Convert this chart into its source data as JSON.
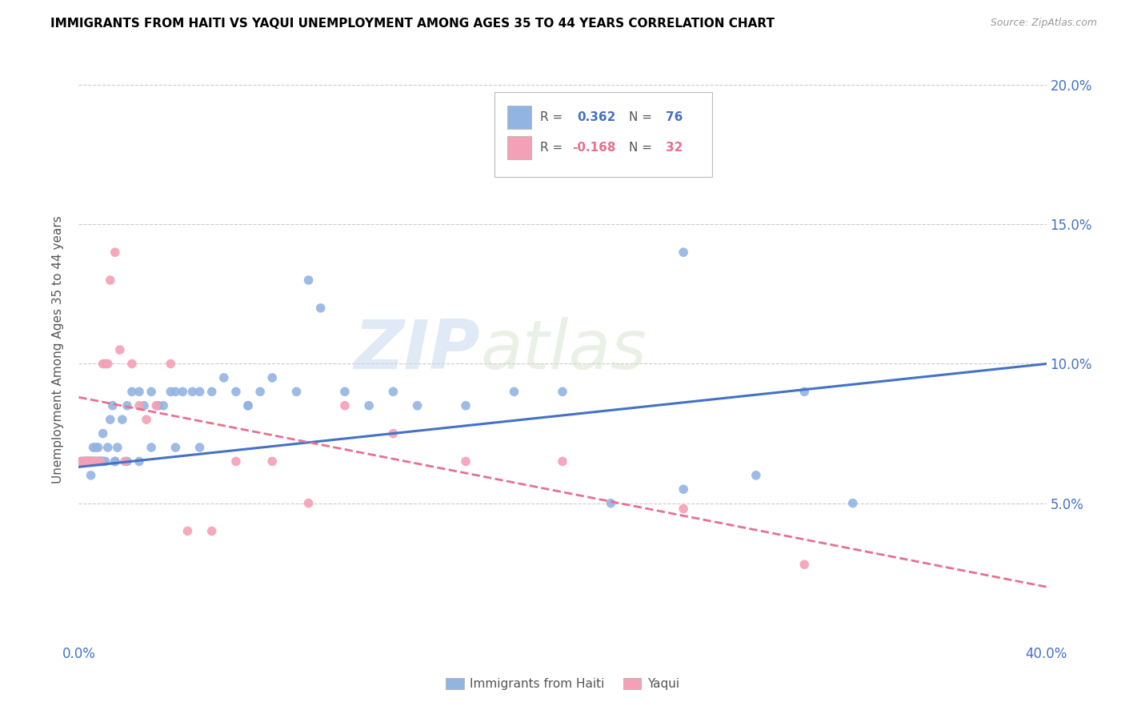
{
  "title": "IMMIGRANTS FROM HAITI VS YAQUI UNEMPLOYMENT AMONG AGES 35 TO 44 YEARS CORRELATION CHART",
  "source": "Source: ZipAtlas.com",
  "ylabel": "Unemployment Among Ages 35 to 44 years",
  "x_min": 0.0,
  "x_max": 0.4,
  "y_min": 0.0,
  "y_max": 0.21,
  "x_ticks": [
    0.0,
    0.05,
    0.1,
    0.15,
    0.2,
    0.25,
    0.3,
    0.35,
    0.4
  ],
  "y_ticks": [
    0.0,
    0.05,
    0.1,
    0.15,
    0.2
  ],
  "haiti_R": 0.362,
  "haiti_N": 76,
  "yaqui_R": -0.168,
  "yaqui_N": 32,
  "haiti_color": "#92b4e3",
  "yaqui_color": "#f4a0b5",
  "haiti_line_color": "#4472c4",
  "yaqui_line_color": "#e87090",
  "haiti_line_y0": 0.063,
  "haiti_line_y1": 0.1,
  "yaqui_line_y0": 0.088,
  "yaqui_line_y1": 0.02,
  "watermark_zip": "ZIP",
  "watermark_atlas": "atlas",
  "haiti_x": [
    0.001,
    0.002,
    0.002,
    0.003,
    0.003,
    0.004,
    0.004,
    0.005,
    0.005,
    0.005,
    0.006,
    0.006,
    0.007,
    0.007,
    0.008,
    0.008,
    0.009,
    0.009,
    0.01,
    0.01,
    0.011,
    0.012,
    0.013,
    0.014,
    0.015,
    0.016,
    0.018,
    0.02,
    0.022,
    0.025,
    0.027,
    0.03,
    0.033,
    0.035,
    0.038,
    0.04,
    0.043,
    0.047,
    0.05,
    0.055,
    0.06,
    0.065,
    0.07,
    0.075,
    0.08,
    0.09,
    0.095,
    0.1,
    0.11,
    0.12,
    0.13,
    0.14,
    0.16,
    0.18,
    0.2,
    0.22,
    0.25,
    0.28,
    0.3,
    0.32,
    0.003,
    0.004,
    0.005,
    0.006,
    0.007,
    0.008,
    0.009,
    0.01,
    0.015,
    0.02,
    0.025,
    0.03,
    0.04,
    0.05,
    0.07,
    0.25
  ],
  "haiti_y": [
    0.065,
    0.065,
    0.065,
    0.065,
    0.065,
    0.065,
    0.065,
    0.065,
    0.065,
    0.065,
    0.065,
    0.07,
    0.065,
    0.07,
    0.065,
    0.07,
    0.065,
    0.065,
    0.065,
    0.075,
    0.065,
    0.07,
    0.08,
    0.085,
    0.065,
    0.07,
    0.08,
    0.085,
    0.09,
    0.09,
    0.085,
    0.09,
    0.085,
    0.085,
    0.09,
    0.09,
    0.09,
    0.09,
    0.09,
    0.09,
    0.095,
    0.09,
    0.085,
    0.09,
    0.095,
    0.09,
    0.13,
    0.12,
    0.09,
    0.085,
    0.09,
    0.085,
    0.085,
    0.09,
    0.09,
    0.05,
    0.055,
    0.06,
    0.09,
    0.05,
    0.065,
    0.065,
    0.06,
    0.065,
    0.065,
    0.065,
    0.065,
    0.065,
    0.065,
    0.065,
    0.065,
    0.07,
    0.07,
    0.07,
    0.085,
    0.14
  ],
  "yaqui_x": [
    0.001,
    0.002,
    0.003,
    0.004,
    0.005,
    0.006,
    0.007,
    0.008,
    0.009,
    0.01,
    0.011,
    0.012,
    0.013,
    0.015,
    0.017,
    0.019,
    0.022,
    0.025,
    0.028,
    0.032,
    0.038,
    0.045,
    0.055,
    0.065,
    0.08,
    0.095,
    0.11,
    0.13,
    0.16,
    0.2,
    0.25,
    0.3
  ],
  "yaqui_y": [
    0.065,
    0.065,
    0.065,
    0.065,
    0.065,
    0.065,
    0.065,
    0.065,
    0.065,
    0.1,
    0.1,
    0.1,
    0.13,
    0.14,
    0.105,
    0.065,
    0.1,
    0.085,
    0.08,
    0.085,
    0.1,
    0.04,
    0.04,
    0.065,
    0.065,
    0.05,
    0.085,
    0.075,
    0.065,
    0.065,
    0.048,
    0.028
  ]
}
